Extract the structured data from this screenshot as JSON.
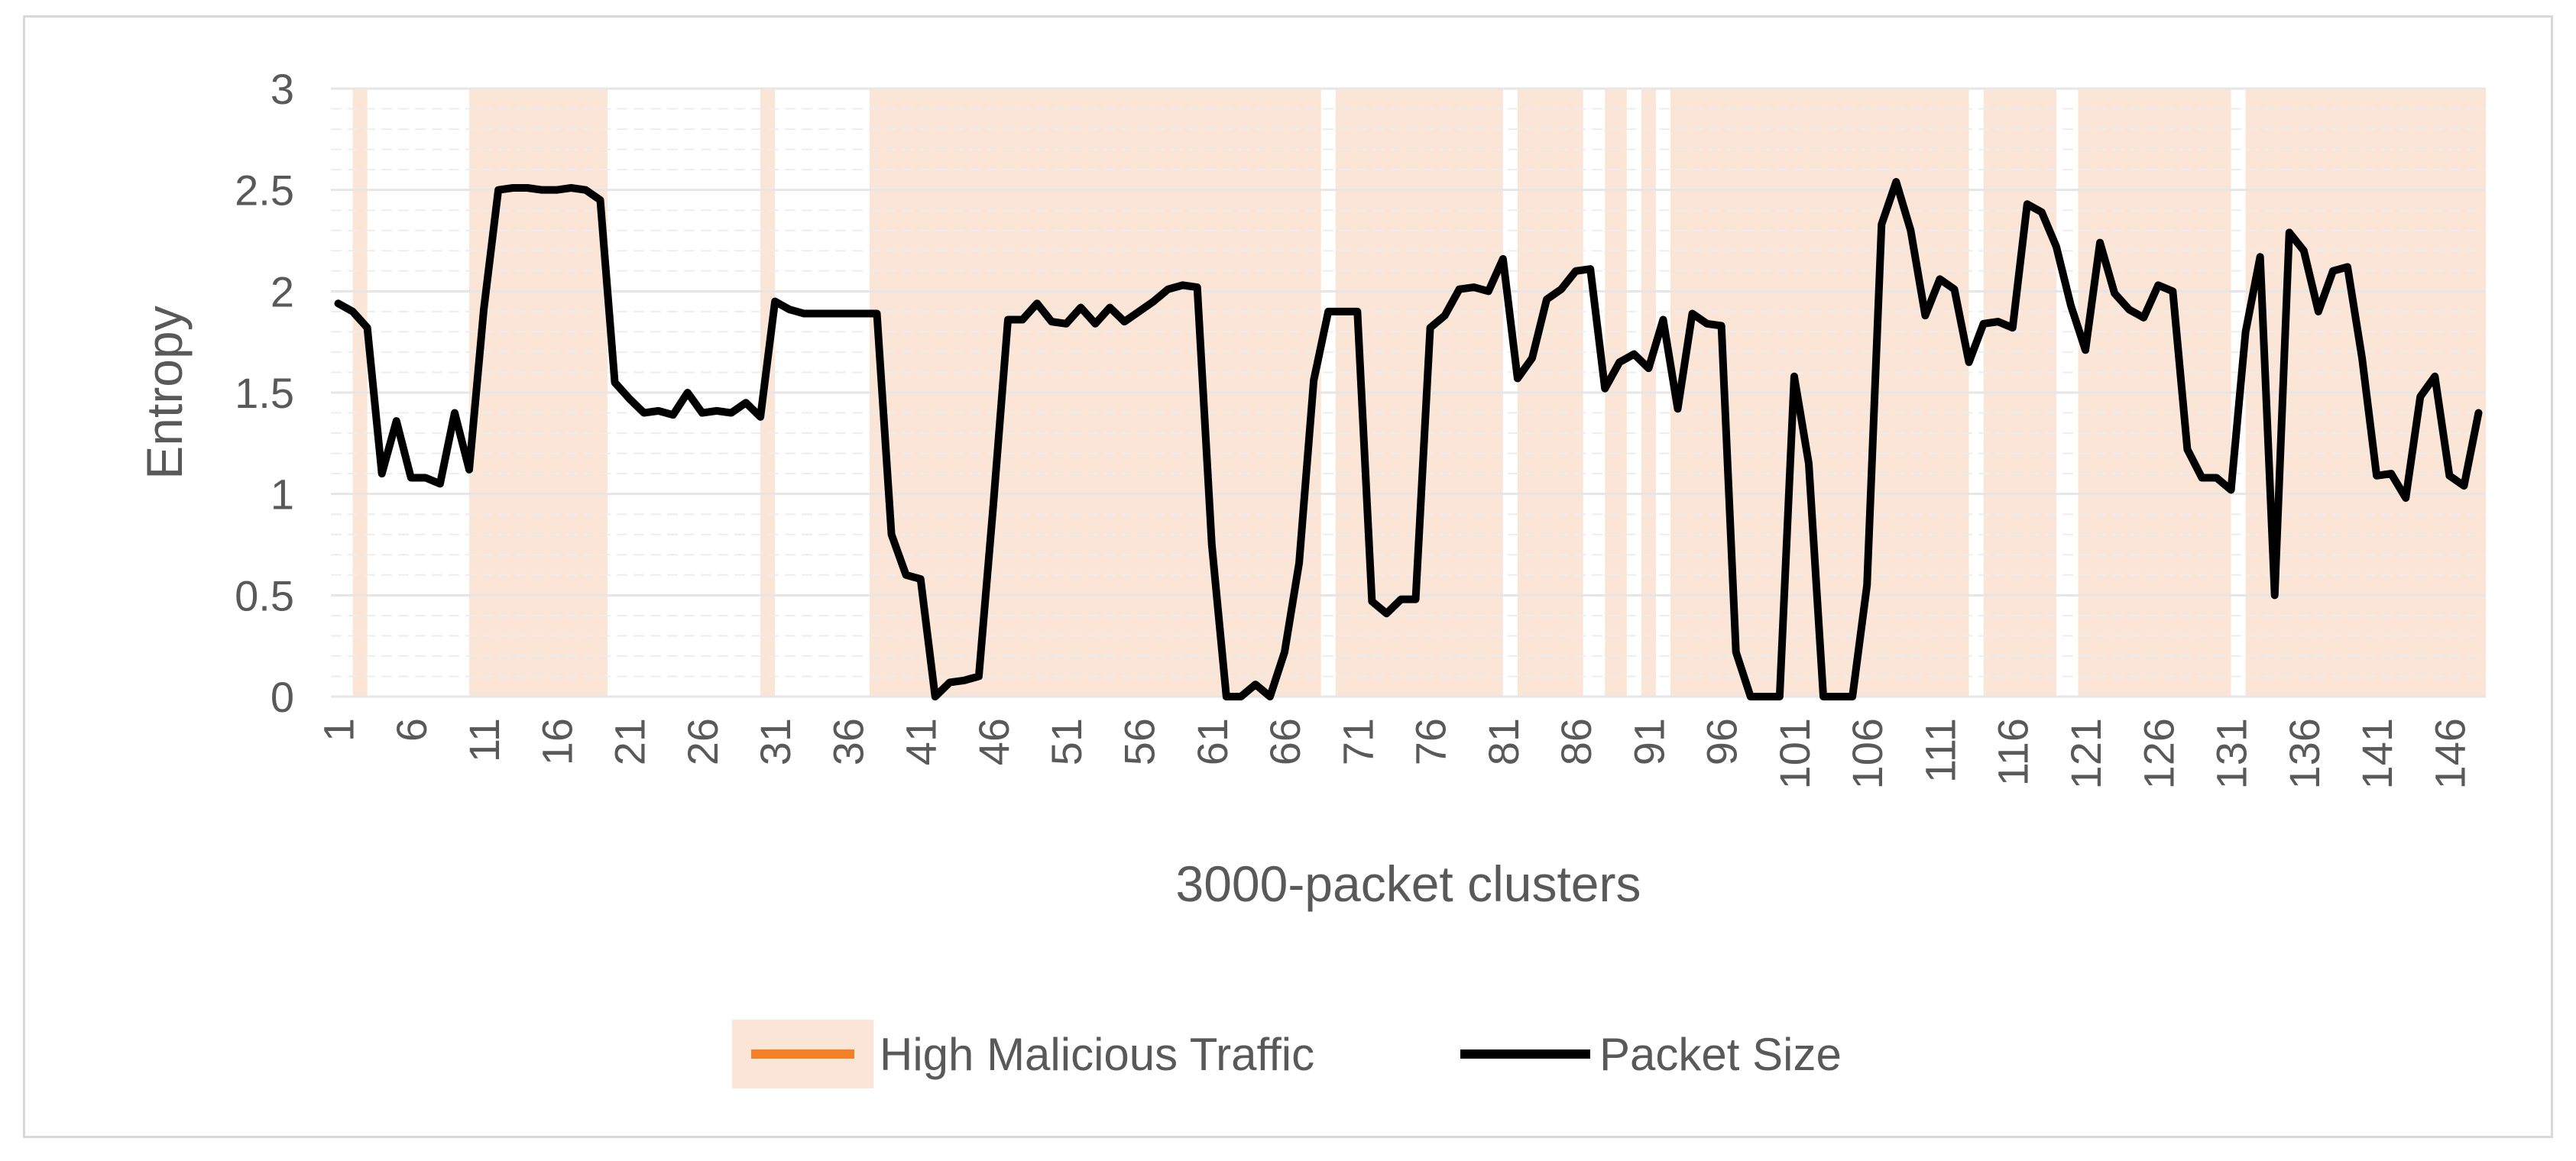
{
  "chart_data": {
    "type": "line",
    "title": "",
    "xlabel": "3000-packet clusters",
    "ylabel": "Entropy",
    "ylim": [
      0,
      3
    ],
    "yticks": [
      0,
      0.5,
      1,
      1.5,
      2,
      2.5,
      3
    ],
    "ytick_labels": [
      "0",
      "0.5",
      "1",
      "1.5",
      "2",
      "2.5",
      "3"
    ],
    "x_range": [
      1,
      148
    ],
    "xticks": [
      1,
      6,
      11,
      16,
      21,
      26,
      31,
      36,
      41,
      46,
      51,
      56,
      61,
      66,
      71,
      76,
      81,
      86,
      91,
      96,
      101,
      106,
      111,
      116,
      121,
      126,
      131,
      136,
      141,
      146
    ],
    "grid": true,
    "legend_position": "bottom",
    "series": [
      {
        "name": "Packet Size",
        "color": "#000000",
        "x": [
          1,
          2,
          3,
          4,
          5,
          6,
          7,
          8,
          9,
          10,
          11,
          12,
          13,
          14,
          15,
          16,
          17,
          18,
          19,
          20,
          21,
          22,
          23,
          24,
          25,
          26,
          27,
          28,
          29,
          30,
          31,
          32,
          33,
          34,
          35,
          36,
          37,
          38,
          39,
          40,
          41,
          42,
          43,
          44,
          45,
          46,
          47,
          48,
          49,
          50,
          51,
          52,
          53,
          54,
          55,
          56,
          57,
          58,
          59,
          60,
          61,
          62,
          63,
          64,
          65,
          66,
          67,
          68,
          69,
          70,
          71,
          72,
          73,
          74,
          75,
          76,
          77,
          78,
          79,
          80,
          81,
          82,
          83,
          84,
          85,
          86,
          87,
          88,
          89,
          90,
          91,
          92,
          93,
          94,
          95,
          96,
          97,
          98,
          99,
          100,
          101,
          102,
          103,
          104,
          105,
          106,
          107,
          108,
          109,
          110,
          111,
          112,
          113,
          114,
          115,
          116,
          117,
          118,
          119,
          120,
          121,
          122,
          123,
          124,
          125,
          126,
          127,
          128,
          129,
          130,
          131,
          132,
          133,
          134,
          135,
          136,
          137,
          138,
          139,
          140,
          141,
          142,
          143,
          144,
          145,
          146,
          147,
          148
        ],
        "values": [
          1.94,
          1.9,
          1.82,
          1.1,
          1.36,
          1.08,
          1.08,
          1.05,
          1.4,
          1.12,
          1.91,
          2.5,
          2.51,
          2.51,
          2.5,
          2.5,
          2.51,
          2.5,
          2.45,
          1.55,
          1.47,
          1.4,
          1.41,
          1.39,
          1.5,
          1.4,
          1.41,
          1.4,
          1.45,
          1.38,
          1.95,
          1.91,
          1.89,
          1.89,
          1.89,
          1.89,
          1.89,
          1.89,
          0.8,
          0.6,
          0.58,
          0.0,
          0.07,
          0.08,
          0.1,
          0.95,
          1.86,
          1.86,
          1.94,
          1.85,
          1.84,
          1.92,
          1.84,
          1.92,
          1.85,
          1.9,
          1.95,
          2.01,
          2.03,
          2.02,
          0.75,
          0.0,
          0.0,
          0.06,
          0.0,
          0.22,
          0.66,
          1.56,
          1.9,
          1.9,
          1.9,
          0.47,
          0.41,
          0.48,
          0.48,
          1.82,
          1.88,
          2.01,
          2.02,
          2.0,
          2.16,
          1.57,
          1.67,
          1.96,
          2.01,
          2.1,
          2.11,
          1.52,
          1.65,
          1.69,
          1.62,
          1.86,
          1.42,
          1.89,
          1.84,
          1.83,
          0.22,
          0.0,
          0.0,
          0.0,
          1.58,
          1.15,
          0.0,
          0.0,
          0.0,
          0.55,
          2.33,
          2.54,
          2.3,
          1.88,
          2.06,
          2.01,
          1.65,
          1.84,
          1.85,
          1.82,
          2.43,
          2.39,
          2.22,
          1.93,
          1.71,
          2.24,
          1.99,
          1.91,
          1.87,
          2.03,
          2.0,
          1.22,
          1.08,
          1.08,
          1.02,
          1.8,
          2.17,
          0.5,
          2.29,
          2.2,
          1.9,
          2.1,
          2.12,
          1.67,
          1.09,
          1.1,
          0.98,
          1.48,
          1.58,
          1.09,
          1.04,
          1.4
        ]
      }
    ],
    "shaded_regions": {
      "name": "High Malicious Traffic",
      "color": "#fbe5d6",
      "ranges": [
        [
          2.0,
          3.0
        ],
        [
          10.0,
          19.5
        ],
        [
          30.0,
          31.0
        ],
        [
          37.5,
          68.5
        ],
        [
          69.5,
          81.0
        ],
        [
          82.0,
          86.5
        ],
        [
          88.0,
          89.5
        ],
        [
          90.5,
          91.5
        ],
        [
          92.5,
          113.0
        ],
        [
          114.0,
          119.0
        ],
        [
          120.5,
          131.0
        ],
        [
          132.0,
          148.5
        ]
      ]
    },
    "legend": [
      {
        "label": "High Malicious Traffic",
        "swatch": "#f58025"
      },
      {
        "label": "Packet Size",
        "swatch": "#000000"
      }
    ]
  }
}
